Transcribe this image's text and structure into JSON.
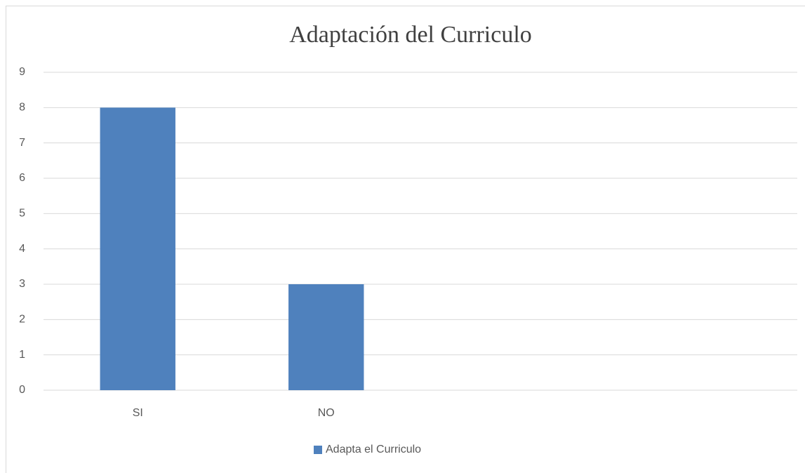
{
  "chart_data": {
    "type": "bar",
    "title": "Adaptación del Curriculo",
    "categories": [
      "SI",
      "NO",
      null,
      null
    ],
    "series": [
      {
        "name": "Adapta el Curriculo",
        "color": "#4f81bd",
        "values": [
          8,
          3,
          null,
          null
        ]
      }
    ],
    "ylim": [
      0,
      9
    ],
    "yticks": [
      0,
      1,
      2,
      3,
      4,
      5,
      6,
      7,
      8,
      9
    ],
    "grid": true,
    "legend": "bottom"
  }
}
